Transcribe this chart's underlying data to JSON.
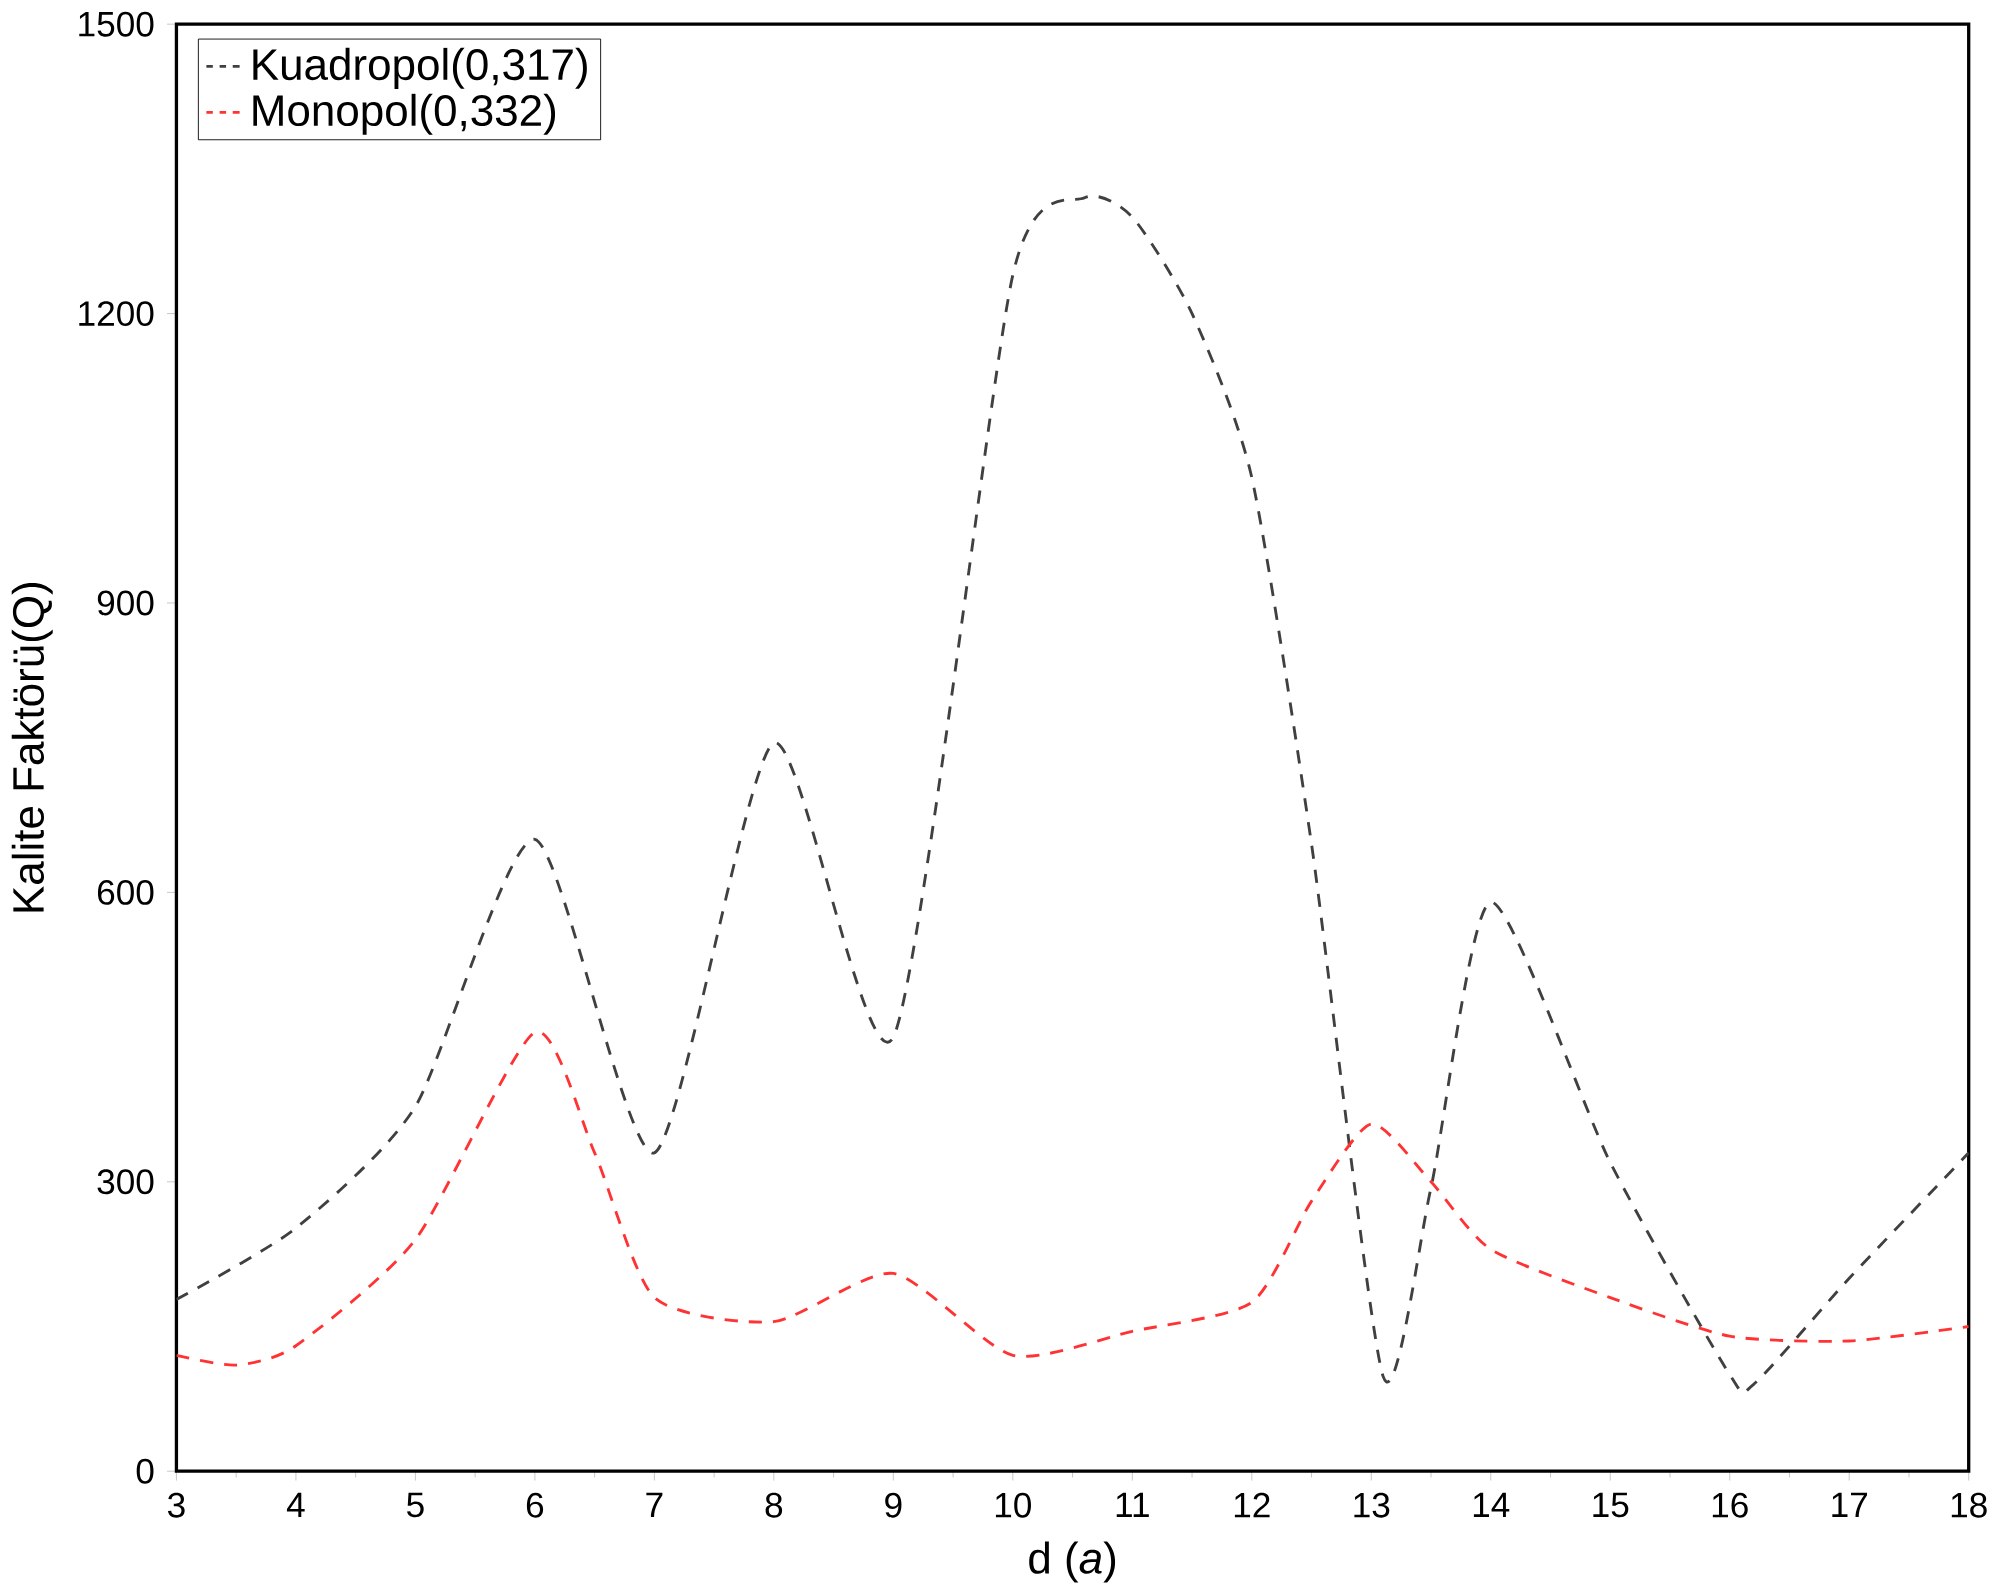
{
  "chart_data": {
    "type": "line",
    "xlabel": "d (*a*)",
    "ylabel": "Kalite Faktörü(Q)",
    "xlim": [
      3,
      18
    ],
    "ylim": [
      0,
      1500
    ],
    "xticks": [
      3,
      4,
      5,
      6,
      7,
      8,
      9,
      10,
      11,
      12,
      13,
      14,
      15,
      16,
      17,
      18
    ],
    "yticks": [
      0,
      300,
      600,
      900,
      1200,
      1500
    ],
    "legend": "top left",
    "line_style": "dashed",
    "grid": false,
    "series": [
      {
        "name": "Kuadropol(0,317)",
        "color": "#404040",
        "x": [
          3,
          4,
          5,
          6,
          7,
          8,
          9,
          10,
          10.6,
          11,
          11.5,
          12,
          12.5,
          13.1,
          13.5,
          14,
          15,
          16,
          16.2,
          17,
          18
        ],
        "values": [
          178,
          252,
          378,
          655,
          330,
          755,
          450,
          1240,
          1320,
          1300,
          1200,
          1030,
          650,
          98,
          294,
          590,
          320,
          100,
          90,
          200,
          330
        ]
      },
      {
        "name": "Monopol(0,332)",
        "color": "#ff3333",
        "x": [
          3,
          3.5,
          4,
          5,
          6,
          6.5,
          7,
          8,
          9,
          10,
          11,
          12,
          12.5,
          13,
          13.5,
          14,
          15,
          16,
          17,
          18
        ],
        "values": [
          120,
          110,
          130,
          240,
          455,
          330,
          180,
          155,
          205,
          120,
          145,
          175,
          280,
          360,
          300,
          230,
          180,
          140,
          135,
          150
        ]
      }
    ]
  }
}
